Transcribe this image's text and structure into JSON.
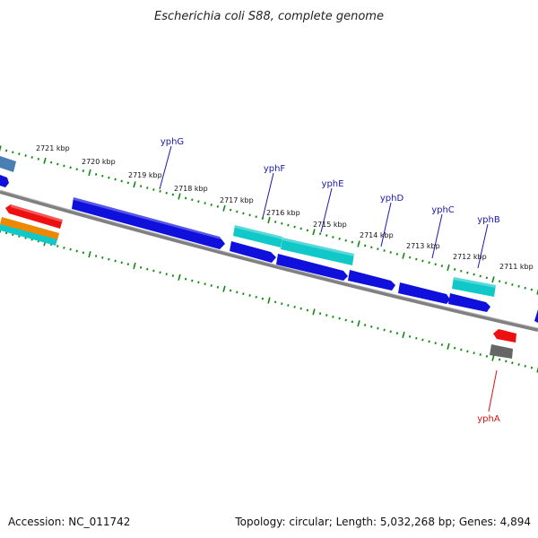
{
  "title": "Escherichia coli S88, complete genome",
  "footer": {
    "accession": "Accession: NC_011742",
    "topology": "Topology: circular; Length: 5,032,268 bp; Genes: 4,894"
  },
  "colors": {
    "backbone": "#808080",
    "ticks": "#118811",
    "cds_blue": "#1010dd",
    "cds_cyan": "#10c8c8",
    "cds_red": "#ee1010",
    "cds_orange": "#ee8800",
    "cds_steel": "#4a7fb5",
    "cds_gray": "#666666",
    "label_blue": "#1a1aaa",
    "label_red": "#dd1111"
  },
  "kbp_labels": [
    "2721 kbp",
    "2720 kbp",
    "2719 kbp",
    "2718 kbp",
    "2717 kbp",
    "2716 kbp",
    "2715 kbp",
    "2714 kbp",
    "2713 kbp",
    "2712 kbp",
    "2711 kbp"
  ],
  "gene_labels": [
    {
      "name": "yphG",
      "strand": "forward"
    },
    {
      "name": "yphF",
      "strand": "forward"
    },
    {
      "name": "yphE",
      "strand": "forward"
    },
    {
      "name": "yphD",
      "strand": "forward"
    },
    {
      "name": "yphC",
      "strand": "forward"
    },
    {
      "name": "yphB",
      "strand": "forward"
    },
    {
      "name": "yphA",
      "strand": "reverse"
    }
  ]
}
